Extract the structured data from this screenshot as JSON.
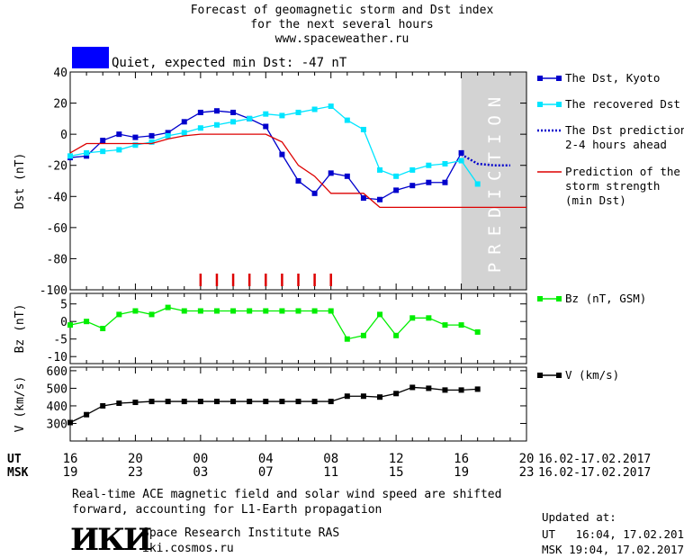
{
  "header": {
    "title_line1": "Forecast of geomagnetic storm and Dst index",
    "title_line2": "for the next several hours",
    "website": "www.spaceweather.ru"
  },
  "status": {
    "label": "Quiet, expected min Dst: -47 nT",
    "color": "#0000ff"
  },
  "footer": {
    "note_line1": "Real-time ACE magnetic field and solar wind speed are shifted",
    "note_line2": "forward, accounting for L1-Earth propagation",
    "institute": "Space Research Institute RAS",
    "institute_site": "iki.cosmos.ru",
    "logo_text": "ИКИ",
    "updated_label": "Updated at:",
    "updated_ut": "UT   16:04, 17.02.2017",
    "updated_msk": "MSK 19:04, 17.02.2017"
  },
  "chart_data": {
    "type": "line",
    "x_axis": {
      "ut_label": "UT",
      "msk_label": "MSK",
      "ut_ticks": [
        "16",
        "20",
        "00",
        "04",
        "08",
        "12",
        "16",
        "20"
      ],
      "msk_ticks": [
        "19",
        "23",
        "03",
        "07",
        "11",
        "15",
        "19",
        "23"
      ],
      "tick_hours": [
        0,
        4,
        8,
        12,
        16,
        20,
        24,
        28
      ],
      "range_hours": [
        0,
        28
      ],
      "date_range": "16.02-17.02.2017"
    },
    "prediction_label": "PREDICTION",
    "prediction_start_hour": 24,
    "colors": {
      "dst": "#0000cc",
      "recovered": "#00e5ff",
      "prediction": "#0000cc",
      "storm": "#dd0000",
      "bz": "#00ee00",
      "v": "#000000",
      "prediction_band": "#d3d3d3"
    },
    "panels": [
      {
        "name": "dst",
        "ylabel": "Dst (nT)",
        "ylim": [
          -100,
          40
        ],
        "yticks": [
          40,
          20,
          0,
          -20,
          -40,
          -60,
          -80,
          -100
        ],
        "series": [
          {
            "name": "The Dst, Kyoto",
            "key": "dst_kyoto",
            "x": [
              0,
              1,
              2,
              3,
              4,
              5,
              6,
              7,
              8,
              9,
              10,
              11,
              12,
              13,
              14,
              15,
              16,
              17,
              18,
              19,
              20,
              21,
              22,
              23,
              24
            ],
            "y": [
              -15,
              -14,
              -4,
              0,
              -2,
              -1,
              1,
              8,
              14,
              15,
              14,
              10,
              5,
              -13,
              -30,
              -38,
              -25,
              -27,
              -41,
              -42,
              -36,
              -33,
              -31,
              -31,
              -12
            ]
          },
          {
            "name": "The recovered Dst",
            "key": "dst_recovered",
            "x": [
              0,
              1,
              2,
              3,
              4,
              5,
              6,
              7,
              8,
              9,
              10,
              11,
              12,
              13,
              14,
              15,
              16,
              17,
              18,
              19,
              20,
              21,
              22,
              23,
              24,
              25
            ],
            "y": [
              -14,
              -12,
              -11,
              -10,
              -7,
              -5,
              -1,
              1,
              4,
              6,
              8,
              10,
              13,
              12,
              14,
              16,
              18,
              9,
              3,
              -23,
              -27,
              -23,
              -20,
              -19,
              -17,
              -32
            ]
          },
          {
            "name": "The Dst prediction 2-4 hours ahead",
            "key": "dst_prediction",
            "x": [
              24,
              25,
              26,
              27
            ],
            "y": [
              -13,
              -19,
              -20,
              -20
            ]
          },
          {
            "name": "Prediction of the storm strength (min Dst)",
            "key": "storm_strength",
            "x": [
              0,
              1,
              2,
              3,
              4,
              5,
              6,
              7,
              8,
              9,
              10,
              11,
              12,
              13,
              14,
              15,
              16,
              17,
              18,
              19,
              20,
              21,
              22,
              23,
              24,
              25,
              26,
              27,
              28
            ],
            "y": [
              -12,
              -6,
              -6,
              -6,
              -6,
              -6,
              -3,
              -1,
              0,
              0,
              0,
              0,
              0,
              -5,
              -20,
              -27,
              -38,
              -38,
              -38,
              -47,
              -47,
              -47,
              -47,
              -47,
              -47,
              -47,
              -47,
              -47,
              -47
            ]
          }
        ],
        "storm_markers_x": [
          8,
          9,
          10,
          11,
          12,
          13,
          14,
          15,
          16
        ]
      },
      {
        "name": "bz",
        "ylabel": "Bz (nT)",
        "ylim": [
          -12,
          8
        ],
        "yticks": [
          5,
          0,
          -5,
          -10
        ],
        "series": [
          {
            "name": "Bz (nT, GSM)",
            "key": "bz",
            "x": [
              0,
              1,
              2,
              3,
              4,
              5,
              6,
              7,
              8,
              9,
              10,
              11,
              12,
              13,
              14,
              15,
              16,
              17,
              18,
              19,
              20,
              21,
              22,
              23,
              24,
              25
            ],
            "y": [
              -1,
              0,
              -2,
              2,
              3,
              2,
              4,
              3,
              3,
              3,
              3,
              3,
              3,
              3,
              3,
              3,
              3,
              -5,
              -4,
              2,
              -4,
              1,
              1,
              -1,
              -1,
              -3
            ]
          }
        ]
      },
      {
        "name": "v",
        "ylabel": "V (km/s)",
        "ylim": [
          200,
          620
        ],
        "yticks": [
          600,
          500,
          400,
          300
        ],
        "series": [
          {
            "name": "V (km/s)",
            "key": "v",
            "x": [
              0,
              1,
              2,
              3,
              4,
              5,
              6,
              7,
              8,
              9,
              10,
              11,
              12,
              13,
              14,
              15,
              16,
              17,
              18,
              19,
              20,
              21,
              22,
              23,
              24,
              25
            ],
            "y": [
              305,
              350,
              400,
              415,
              420,
              425,
              425,
              425,
              425,
              425,
              425,
              425,
              425,
              425,
              425,
              425,
              425,
              455,
              455,
              450,
              470,
              505,
              500,
              490,
              490,
              495
            ]
          }
        ]
      }
    ]
  }
}
